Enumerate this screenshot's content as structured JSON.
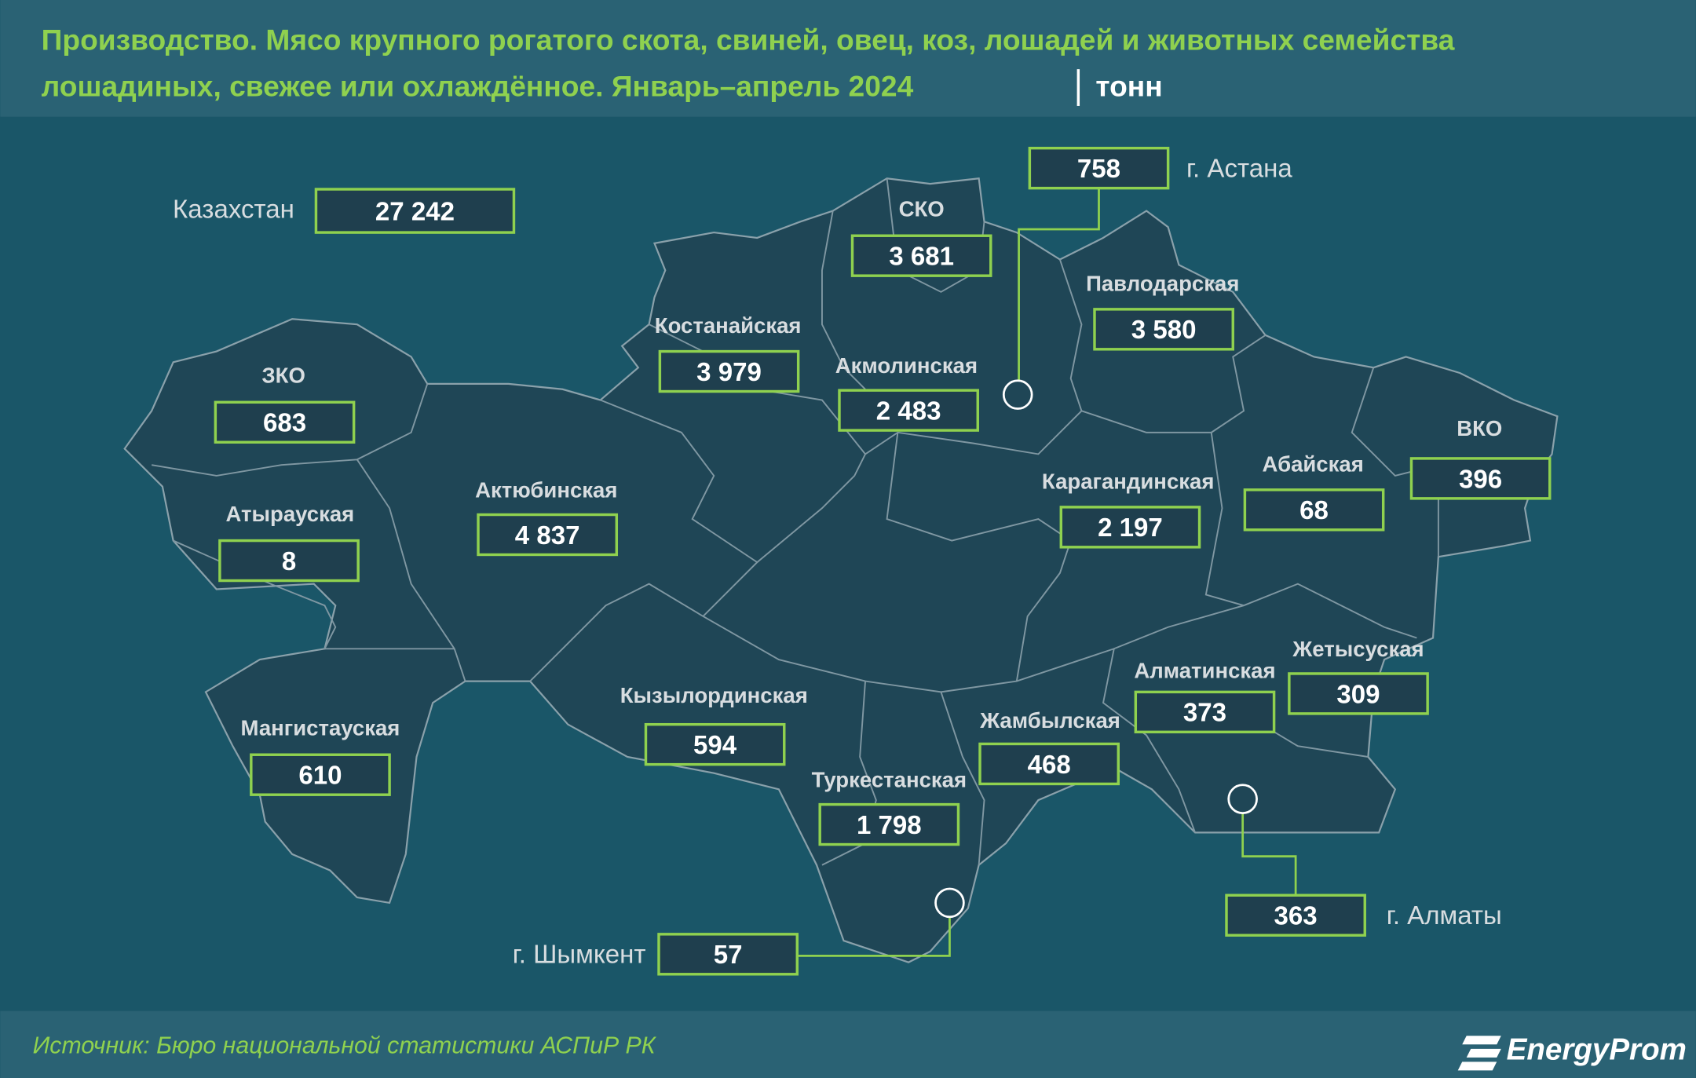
{
  "header": {
    "title_line1": "Производство. Мясо крупного рогатого скота, свиней, овец, коз, лошадей и животных семейства",
    "title_line2": "лошадиных, свежее или охлаждённое. Январь–апрель 2024",
    "unit": "тонн"
  },
  "total": {
    "name": "Казахстан",
    "value": "27 242"
  },
  "regions": [
    {
      "name": "СКО",
      "value": "3 681"
    },
    {
      "name": "Павлодарская",
      "value": "3 580"
    },
    {
      "name": "Костанайская",
      "value": "3 979"
    },
    {
      "name": "Акмолинская",
      "value": "2 483"
    },
    {
      "name": "ЗКО",
      "value": "683"
    },
    {
      "name": "Актюбинская",
      "value": "4 837"
    },
    {
      "name": "Атырауская",
      "value": "8"
    },
    {
      "name": "Карагандинская",
      "value": "2 197"
    },
    {
      "name": "Абайская",
      "value": "68"
    },
    {
      "name": "ВКО",
      "value": "396"
    },
    {
      "name": "Кызылординская",
      "value": "594"
    },
    {
      "name": "Мангистауская",
      "value": "610"
    },
    {
      "name": "Жамбылская",
      "value": "468"
    },
    {
      "name": "Алматинская",
      "value": "373"
    },
    {
      "name": "Жетысуская",
      "value": "309"
    },
    {
      "name": "Туркестанская",
      "value": "1 798"
    }
  ],
  "cities": [
    {
      "name": "г. Астана",
      "value": "758"
    },
    {
      "name": "г. Шымкент",
      "value": "57"
    },
    {
      "name": "г. Алматы",
      "value": "363"
    }
  ],
  "footer": {
    "source": "Источник: Бюро национальной статистики АСПиР РК",
    "logo": "EnergyProm"
  }
}
